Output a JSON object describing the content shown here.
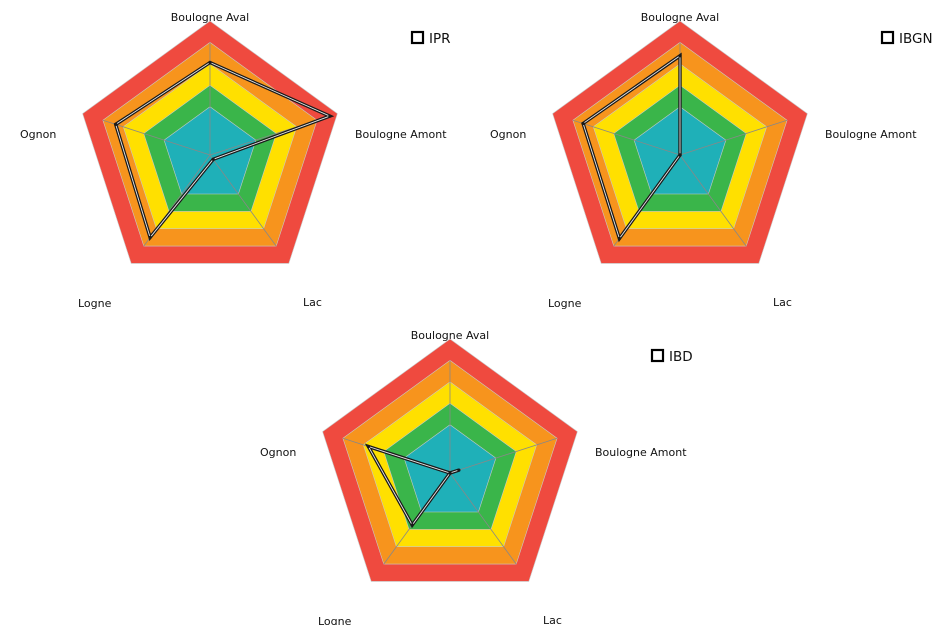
{
  "colors": {
    "band_red": "#ef4a3f",
    "band_orange": "#f7941d",
    "band_yellow": "#ffe000",
    "band_green": "#3ab54a",
    "band_blue": "#1fb0b8",
    "band_edge": "#c8c8c8",
    "series": "#1a1a1a"
  },
  "chart_data": [
    {
      "type": "radar",
      "legend": "IPR",
      "legend_position": "top-right",
      "axes": [
        "Boulogne Aval",
        "Boulogne Amont",
        "Lac",
        "Logne",
        "Ognon"
      ],
      "series": [
        {
          "name": "IPR",
          "values": [
            3.45,
            4.7,
            0.2,
            3.8,
            3.7
          ]
        }
      ],
      "range": [
        0,
        5
      ],
      "bands": 5
    },
    {
      "type": "radar",
      "legend": "IBGN",
      "legend_position": "top-right",
      "axes": [
        "Boulogne Aval",
        "Boulogne Amont",
        "Lac",
        "Logne",
        "Ognon"
      ],
      "series": [
        {
          "name": "IBGN",
          "values": [
            3.7,
            0.0,
            0.0,
            3.85,
            3.8
          ]
        }
      ],
      "range": [
        0,
        5
      ],
      "bands": 5
    },
    {
      "type": "radar",
      "legend": "IBD",
      "legend_position": "top-right",
      "axes": [
        "Boulogne Aval",
        "Boulogne Amont",
        "Lac",
        "Logne",
        "Ognon"
      ],
      "series": [
        {
          "name": "IBD",
          "values": [
            0.0,
            0.35,
            0.0,
            2.4,
            3.2
          ]
        }
      ],
      "range": [
        0,
        5
      ],
      "bands": 5
    }
  ]
}
